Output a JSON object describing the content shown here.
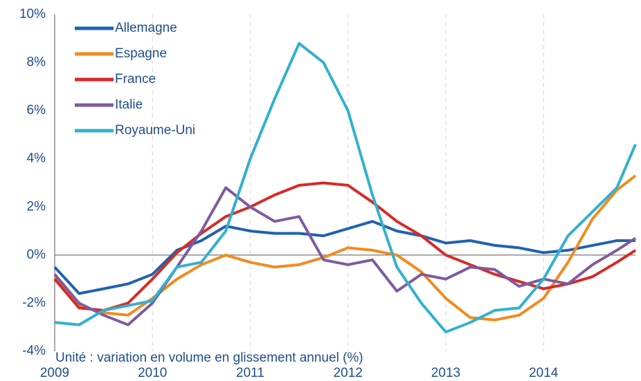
{
  "chart_data": {
    "type": "line",
    "annotation": "Unité : variation en volume en glissement annuel (%)",
    "x": [
      2009,
      2009.25,
      2009.5,
      2009.75,
      2010,
      2010.25,
      2010.5,
      2010.75,
      2011,
      2011.25,
      2011.5,
      2011.75,
      2012,
      2012.25,
      2012.5,
      2012.75,
      2013,
      2013.25,
      2013.5,
      2013.75,
      2014,
      2014.25,
      2014.5,
      2014.75,
      2014.94
    ],
    "series": [
      {
        "name": "Allemagne",
        "color": "#1f62b0",
        "values": [
          -0.5,
          -1.6,
          -1.4,
          -1.2,
          -0.8,
          0.2,
          0.6,
          1.2,
          1.0,
          0.9,
          0.9,
          0.8,
          1.1,
          1.4,
          1.0,
          0.8,
          0.5,
          0.6,
          0.4,
          0.3,
          0.1,
          0.2,
          0.4,
          0.6,
          0.6
        ]
      },
      {
        "name": "Espagne",
        "color": "#f28a1e",
        "values": [
          -0.9,
          -2.1,
          -2.4,
          -2.5,
          -1.8,
          -1.0,
          -0.4,
          0.0,
          -0.3,
          -0.5,
          -0.4,
          -0.1,
          0.3,
          0.2,
          0.0,
          -0.7,
          -1.8,
          -2.6,
          -2.7,
          -2.5,
          -1.8,
          -0.3,
          1.5,
          2.7,
          3.3
        ]
      },
      {
        "name": "France",
        "color": "#d52b27",
        "values": [
          -1.0,
          -2.2,
          -2.3,
          -2.0,
          -1.0,
          0.1,
          0.9,
          1.6,
          2.0,
          2.5,
          2.9,
          3.0,
          2.9,
          2.2,
          1.4,
          0.8,
          0.0,
          -0.4,
          -0.8,
          -1.1,
          -1.4,
          -1.2,
          -0.9,
          -0.3,
          0.2
        ]
      },
      {
        "name": "Italie",
        "color": "#7e5a9f",
        "values": [
          -0.8,
          -2.0,
          -2.5,
          -2.9,
          -2.0,
          -0.5,
          1.0,
          2.8,
          2.0,
          1.4,
          1.6,
          -0.2,
          -0.4,
          -0.2,
          -1.5,
          -0.8,
          -1.0,
          -0.5,
          -0.6,
          -1.3,
          -1.0,
          -1.2,
          -0.4,
          0.2,
          0.7
        ]
      },
      {
        "name": "Royaume-Uni",
        "color": "#33b0d0",
        "values": [
          -2.8,
          -2.9,
          -2.3,
          -2.1,
          -1.9,
          -0.5,
          -0.3,
          1.0,
          4.0,
          6.5,
          8.8,
          8.0,
          6.0,
          2.5,
          -0.5,
          -2.0,
          -3.2,
          -2.8,
          -2.3,
          -2.2,
          -1.0,
          0.8,
          1.8,
          2.8,
          4.6
        ]
      }
    ],
    "xlim": [
      2009,
      2014.94
    ],
    "xticks": [
      2009,
      2010,
      2011,
      2012,
      2013,
      2014
    ],
    "ylim": [
      -4,
      10
    ],
    "yticks": [
      {
        "value": -4,
        "label": "-4%"
      },
      {
        "value": -2,
        "label": "-2%"
      },
      {
        "value": 0,
        "label": "0%"
      },
      {
        "value": 2,
        "label": "2%"
      },
      {
        "value": 4,
        "label": "4%"
      },
      {
        "value": 6,
        "label": "6%"
      },
      {
        "value": 8,
        "label": "8%"
      },
      {
        "value": 10,
        "label": "10%"
      }
    ],
    "grid": true,
    "legend": "top-left"
  }
}
